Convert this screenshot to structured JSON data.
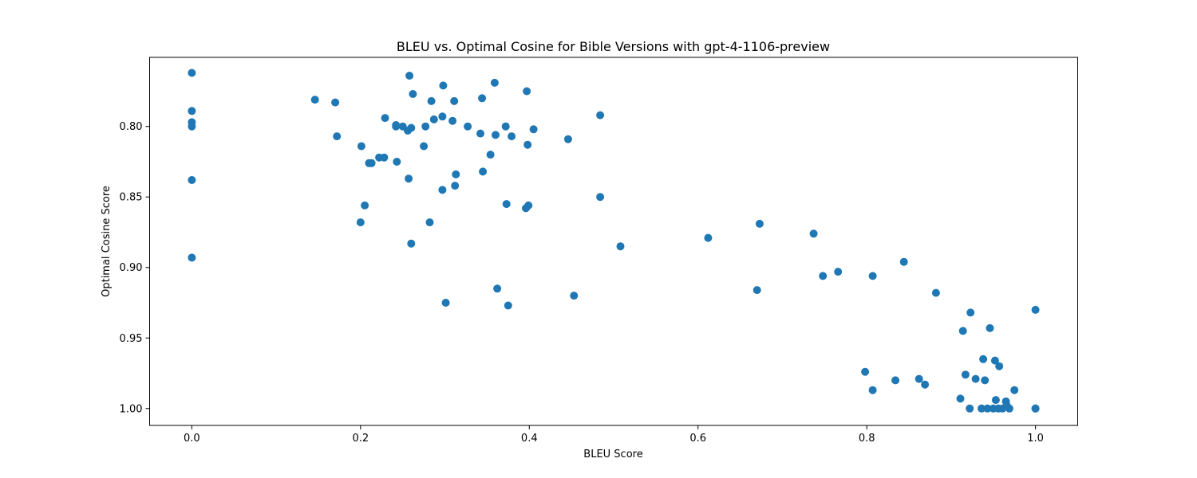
{
  "chart_data": {
    "type": "scatter",
    "title": "BLEU vs. Optimal Cosine for Bible Versions with gpt-4-1106-preview",
    "xlabel": "BLEU Score",
    "ylabel": "Optimal Cosine Score",
    "xlim": [
      -0.05,
      1.05
    ],
    "ylim": [
      1.012,
      0.751
    ],
    "y_inverted": true,
    "grid": false,
    "legend": "none",
    "x_ticks": [
      0.0,
      0.2,
      0.4,
      0.6,
      0.8,
      1.0
    ],
    "x_tick_labels": [
      "0.0",
      "0.2",
      "0.4",
      "0.6",
      "0.8",
      "1.0"
    ],
    "y_ticks": [
      0.8,
      0.85,
      0.9,
      0.95,
      1.0
    ],
    "y_tick_labels": [
      "0.80",
      "0.85",
      "0.90",
      "0.95",
      "1.00"
    ],
    "marker_color": "#1f77b4",
    "points": [
      {
        "x": 0.0,
        "y": 0.762
      },
      {
        "x": 0.0,
        "y": 0.789
      },
      {
        "x": 0.0,
        "y": 0.797
      },
      {
        "x": 0.0,
        "y": 0.8
      },
      {
        "x": 0.0,
        "y": 0.838
      },
      {
        "x": 0.0,
        "y": 0.893
      },
      {
        "x": 0.146,
        "y": 0.781
      },
      {
        "x": 0.17,
        "y": 0.783
      },
      {
        "x": 0.172,
        "y": 0.807
      },
      {
        "x": 0.201,
        "y": 0.814
      },
      {
        "x": 0.205,
        "y": 0.856
      },
      {
        "x": 0.2,
        "y": 0.868
      },
      {
        "x": 0.21,
        "y": 0.826
      },
      {
        "x": 0.213,
        "y": 0.826
      },
      {
        "x": 0.222,
        "y": 0.822
      },
      {
        "x": 0.228,
        "y": 0.822
      },
      {
        "x": 0.229,
        "y": 0.794
      },
      {
        "x": 0.242,
        "y": 0.8
      },
      {
        "x": 0.243,
        "y": 0.825
      },
      {
        "x": 0.242,
        "y": 0.799
      },
      {
        "x": 0.25,
        "y": 0.8
      },
      {
        "x": 0.256,
        "y": 0.803
      },
      {
        "x": 0.26,
        "y": 0.801
      },
      {
        "x": 0.257,
        "y": 0.837
      },
      {
        "x": 0.26,
        "y": 0.883
      },
      {
        "x": 0.258,
        "y": 0.764
      },
      {
        "x": 0.262,
        "y": 0.777
      },
      {
        "x": 0.277,
        "y": 0.8
      },
      {
        "x": 0.275,
        "y": 0.814
      },
      {
        "x": 0.282,
        "y": 0.868
      },
      {
        "x": 0.284,
        "y": 0.782
      },
      {
        "x": 0.287,
        "y": 0.795
      },
      {
        "x": 0.297,
        "y": 0.793
      },
      {
        "x": 0.298,
        "y": 0.771
      },
      {
        "x": 0.297,
        "y": 0.845
      },
      {
        "x": 0.301,
        "y": 0.925
      },
      {
        "x": 0.309,
        "y": 0.796
      },
      {
        "x": 0.311,
        "y": 0.782
      },
      {
        "x": 0.313,
        "y": 0.834
      },
      {
        "x": 0.312,
        "y": 0.842
      },
      {
        "x": 0.327,
        "y": 0.8
      },
      {
        "x": 0.342,
        "y": 0.805
      },
      {
        "x": 0.344,
        "y": 0.78
      },
      {
        "x": 0.345,
        "y": 0.832
      },
      {
        "x": 0.354,
        "y": 0.82
      },
      {
        "x": 0.359,
        "y": 0.769
      },
      {
        "x": 0.36,
        "y": 0.806
      },
      {
        "x": 0.362,
        "y": 0.915
      },
      {
        "x": 0.372,
        "y": 0.8
      },
      {
        "x": 0.373,
        "y": 0.855
      },
      {
        "x": 0.375,
        "y": 0.927
      },
      {
        "x": 0.379,
        "y": 0.807
      },
      {
        "x": 0.397,
        "y": 0.775
      },
      {
        "x": 0.398,
        "y": 0.813
      },
      {
        "x": 0.396,
        "y": 0.858
      },
      {
        "x": 0.399,
        "y": 0.856
      },
      {
        "x": 0.405,
        "y": 0.802
      },
      {
        "x": 0.446,
        "y": 0.809
      },
      {
        "x": 0.453,
        "y": 0.92
      },
      {
        "x": 0.484,
        "y": 0.792
      },
      {
        "x": 0.484,
        "y": 0.85
      },
      {
        "x": 0.508,
        "y": 0.885
      },
      {
        "x": 0.612,
        "y": 0.879
      },
      {
        "x": 0.67,
        "y": 0.916
      },
      {
        "x": 0.673,
        "y": 0.869
      },
      {
        "x": 0.737,
        "y": 0.876
      },
      {
        "x": 0.748,
        "y": 0.906
      },
      {
        "x": 0.766,
        "y": 0.903
      },
      {
        "x": 0.798,
        "y": 0.974
      },
      {
        "x": 0.807,
        "y": 0.906
      },
      {
        "x": 0.807,
        "y": 0.987
      },
      {
        "x": 0.834,
        "y": 0.98
      },
      {
        "x": 0.844,
        "y": 0.896
      },
      {
        "x": 0.862,
        "y": 0.979
      },
      {
        "x": 0.869,
        "y": 0.983
      },
      {
        "x": 0.882,
        "y": 0.918
      },
      {
        "x": 0.911,
        "y": 0.993
      },
      {
        "x": 0.914,
        "y": 0.945
      },
      {
        "x": 0.917,
        "y": 0.976
      },
      {
        "x": 0.922,
        "y": 1.0
      },
      {
        "x": 0.923,
        "y": 0.932
      },
      {
        "x": 0.929,
        "y": 0.979
      },
      {
        "x": 0.936,
        "y": 1.0
      },
      {
        "x": 0.938,
        "y": 0.965
      },
      {
        "x": 0.94,
        "y": 0.98
      },
      {
        "x": 0.943,
        "y": 1.0
      },
      {
        "x": 0.946,
        "y": 0.943
      },
      {
        "x": 0.95,
        "y": 1.0
      },
      {
        "x": 0.952,
        "y": 0.966
      },
      {
        "x": 0.953,
        "y": 0.994
      },
      {
        "x": 0.956,
        "y": 1.0
      },
      {
        "x": 0.957,
        "y": 0.97
      },
      {
        "x": 0.961,
        "y": 1.0
      },
      {
        "x": 0.965,
        "y": 0.995
      },
      {
        "x": 0.966,
        "y": 0.998
      },
      {
        "x": 0.969,
        "y": 1.0
      },
      {
        "x": 0.975,
        "y": 0.987
      },
      {
        "x": 1.0,
        "y": 0.93
      },
      {
        "x": 1.0,
        "y": 1.0
      },
      {
        "x": 1.0,
        "y": 1.0
      }
    ]
  }
}
